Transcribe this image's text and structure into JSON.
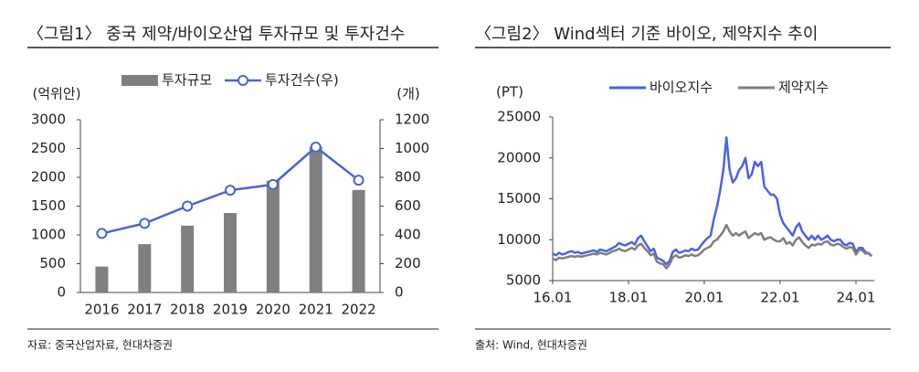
{
  "chart_data": [
    {
      "type": "bar",
      "title": "〈그림1〉 중국 제약/바이오산업 투자규모 및 투자건수",
      "y_label": "(억위안)",
      "y2_label": "(개)",
      "source": "자료: 중국산업자료, 현대차증권",
      "categories": [
        "2016",
        "2017",
        "2018",
        "2019",
        "2020",
        "2021",
        "2022"
      ],
      "series": [
        {
          "name": "투자규모",
          "color": "#808080",
          "type": "bar",
          "values": [
            450,
            840,
            1160,
            1380,
            1940,
            2530,
            1780
          ]
        },
        {
          "name": "투자건수(우)",
          "color": "#4a63d6",
          "type": "line",
          "axis": "y2",
          "values": [
            410,
            480,
            600,
            710,
            750,
            1010,
            780
          ]
        }
      ],
      "ylim": [
        0,
        3000
      ],
      "yticks": [
        0,
        500,
        1000,
        1500,
        2000,
        2500,
        3000
      ],
      "y2lim": [
        0,
        1200
      ],
      "y2ticks": [
        0,
        200,
        400,
        600,
        800,
        1000,
        1200
      ]
    },
    {
      "type": "line",
      "title": "〈그림2〉 Wind섹터 기준 바이오, 제약지수 추이",
      "y_label": "(PT)",
      "source": "출처: Wind, 현대차증권",
      "x": [
        "16.01",
        "16.02",
        "16.03",
        "16.04",
        "16.05",
        "16.06",
        "16.07",
        "16.08",
        "16.09",
        "16.10",
        "16.11",
        "16.12",
        "17.01",
        "17.02",
        "17.03",
        "17.04",
        "17.05",
        "17.06",
        "17.07",
        "17.08",
        "17.09",
        "17.10",
        "17.11",
        "17.12",
        "18.01",
        "18.02",
        "18.03",
        "18.04",
        "18.05",
        "18.06",
        "18.07",
        "18.08",
        "18.09",
        "18.10",
        "18.11",
        "18.12",
        "19.01",
        "19.02",
        "19.03",
        "19.04",
        "19.05",
        "19.06",
        "19.07",
        "19.08",
        "19.09",
        "19.10",
        "19.11",
        "19.12",
        "20.01",
        "20.02",
        "20.03",
        "20.04",
        "20.05",
        "20.06",
        "20.07",
        "20.08",
        "20.09",
        "20.10",
        "20.11",
        "20.12",
        "21.01",
        "21.02",
        "21.03",
        "21.04",
        "21.05",
        "21.06",
        "21.07",
        "21.08",
        "21.09",
        "21.10",
        "21.11",
        "21.12",
        "22.01",
        "22.02",
        "22.03",
        "22.04",
        "22.05",
        "22.06",
        "22.07",
        "22.08",
        "22.09",
        "22.10",
        "22.11",
        "22.12",
        "23.01",
        "23.02",
        "23.03",
        "23.04",
        "23.05",
        "23.06",
        "23.07",
        "23.08",
        "23.09",
        "23.10",
        "23.11",
        "23.12",
        "24.01",
        "24.02",
        "24.03",
        "24.04",
        "24.05",
        "24.06"
      ],
      "series": [
        {
          "name": "바이오지수",
          "color": "#4a63e6",
          "values": [
            8300,
            8100,
            8400,
            8200,
            8300,
            8500,
            8600,
            8400,
            8500,
            8300,
            8400,
            8500,
            8600,
            8700,
            8500,
            8800,
            8700,
            8600,
            8800,
            9000,
            9200,
            9600,
            9400,
            9300,
            9500,
            9700,
            9400,
            10200,
            10500,
            9800,
            9200,
            8600,
            8900,
            7800,
            7600,
            7400,
            7000,
            7400,
            8500,
            8800,
            8400,
            8500,
            8700,
            8600,
            8900,
            8700,
            8800,
            9300,
            9800,
            10200,
            10500,
            12500,
            14000,
            16000,
            18500,
            22500,
            18500,
            17000,
            17500,
            18500,
            19000,
            20000,
            17500,
            18000,
            19500,
            19000,
            19500,
            16500,
            16000,
            15500,
            15500,
            15000,
            13000,
            12000,
            11500,
            11000,
            10500,
            11500,
            12000,
            11000,
            10500,
            10000,
            10500,
            10000,
            10500,
            10000,
            10200,
            10500,
            10000,
            9800,
            10000,
            10000,
            9500,
            9300,
            9600,
            9500,
            8500,
            9000,
            9000,
            8500,
            8300,
            8000
          ]
        },
        {
          "name": "제약지수",
          "color": "#7f7f7f",
          "values": [
            7700,
            7500,
            7800,
            7700,
            7800,
            7900,
            8000,
            7900,
            8000,
            7900,
            8000,
            8100,
            8200,
            8300,
            8200,
            8400,
            8300,
            8200,
            8400,
            8600,
            8700,
            8900,
            8700,
            8600,
            8800,
            9000,
            8800,
            9300,
            9500,
            9000,
            8600,
            8100,
            8300,
            7300,
            7100,
            7000,
            6500,
            7000,
            7800,
            8100,
            7800,
            7900,
            8100,
            8000,
            8200,
            8000,
            8100,
            8400,
            8800,
            9000,
            9200,
            9800,
            10000,
            10500,
            11000,
            11800,
            11000,
            10500,
            10800,
            10500,
            10800,
            11000,
            10200,
            10500,
            10800,
            10600,
            10800,
            10000,
            10200,
            10300,
            10000,
            9800,
            9800,
            10200,
            9500,
            9700,
            9300,
            10000,
            10300,
            9700,
            9300,
            9000,
            9400,
            9300,
            9500,
            9400,
            9700,
            9800,
            9400,
            9300,
            9500,
            9400,
            9100,
            8900,
            9100,
            9000,
            8200,
            8800,
            8700,
            8300,
            8400,
            8000
          ]
        }
      ],
      "xticks": [
        "16.01",
        "18.01",
        "20.01",
        "22.01",
        "24.01"
      ],
      "ylim": [
        5000,
        25000
      ],
      "yticks": [
        5000,
        10000,
        15000,
        20000,
        25000
      ]
    }
  ]
}
